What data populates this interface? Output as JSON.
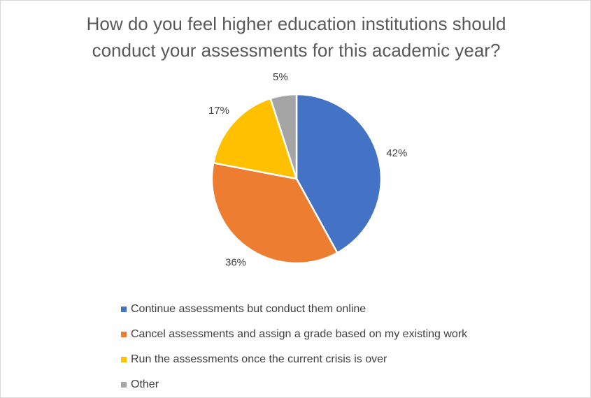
{
  "chart_data": {
    "type": "pie",
    "title": "How do you feel higher education institutions should conduct your assessments for this academic year?",
    "title_lines": [
      "How do you feel higher education institutions should",
      "conduct your assessments for this academic year?"
    ],
    "categories": [
      "Continue assessments but conduct them online",
      "Cancel assessments and assign a grade based on my existing work",
      "Run the assessments once the current crisis is over",
      "Other"
    ],
    "values": [
      42,
      36,
      17,
      5
    ],
    "data_labels": [
      "42%",
      "36%",
      "17%",
      "5%"
    ],
    "colors": [
      "#4472C4",
      "#ED7D31",
      "#FFC000",
      "#A5A5A5"
    ],
    "legend_position": "bottom",
    "start_angle": "12 o'clock",
    "direction": "clockwise"
  }
}
